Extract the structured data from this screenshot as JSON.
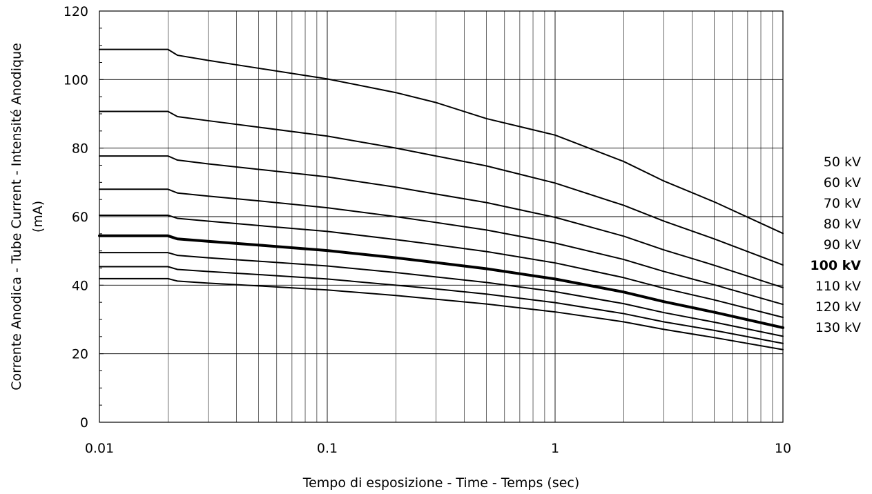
{
  "chart_data": {
    "type": "line",
    "title": "",
    "xlabel": "Tempo di esposizione - Time - Temps  (sec)",
    "ylabel_lines": [
      "Corrente Anodica - Tube Current - Intensité Anodique",
      "(mA)"
    ],
    "x_scale": "log",
    "xlim": [
      0.01,
      10
    ],
    "ylim": [
      0,
      120
    ],
    "x_ticks": [
      0.01,
      0.1,
      1,
      10
    ],
    "x_tick_labels": [
      "0.01",
      "0.1",
      "1",
      "10"
    ],
    "y_ticks": [
      0,
      20,
      40,
      60,
      80,
      100,
      120
    ],
    "y_tick_labels": [
      "0",
      "20",
      "40",
      "60",
      "80",
      "100",
      "120"
    ],
    "grid": true,
    "legend_position": "right",
    "series": [
      {
        "name": "50 kV",
        "bold": false,
        "x": [
          0.01,
          0.02,
          0.022,
          0.03,
          0.05,
          0.1,
          0.2,
          0.3,
          0.5,
          1,
          2,
          3,
          5,
          10
        ],
        "y": [
          108.8,
          108.8,
          107.1,
          105.6,
          103.3,
          100.2,
          96.2,
          93.3,
          88.6,
          83.8,
          76.1,
          70.4,
          64.3,
          55.1
        ]
      },
      {
        "name": "60 kV",
        "bold": false,
        "x": [
          0.01,
          0.02,
          0.022,
          0.03,
          0.05,
          0.1,
          0.2,
          0.3,
          0.5,
          1,
          2,
          3,
          5,
          10
        ],
        "y": [
          90.7,
          90.7,
          89.2,
          88.0,
          86.1,
          83.5,
          80.0,
          77.7,
          74.8,
          69.8,
          63.3,
          58.7,
          53.5,
          45.9
        ]
      },
      {
        "name": "70 kV",
        "bold": false,
        "x": [
          0.01,
          0.02,
          0.022,
          0.03,
          0.05,
          0.1,
          0.2,
          0.3,
          0.5,
          1,
          2,
          3,
          5,
          10
        ],
        "y": [
          77.7,
          77.7,
          76.5,
          75.4,
          73.8,
          71.6,
          68.6,
          66.6,
          64.1,
          59.8,
          54.3,
          50.3,
          45.8,
          39.3
        ]
      },
      {
        "name": "80 kV",
        "bold": false,
        "x": [
          0.01,
          0.02,
          0.022,
          0.03,
          0.05,
          0.1,
          0.2,
          0.3,
          0.5,
          1,
          2,
          3,
          5,
          10
        ],
        "y": [
          68.0,
          68.0,
          66.9,
          66.0,
          64.6,
          62.6,
          60.0,
          58.3,
          56.1,
          52.3,
          47.5,
          44.0,
          40.1,
          34.4
        ]
      },
      {
        "name": "90 kV",
        "bold": false,
        "x": [
          0.01,
          0.02,
          0.022,
          0.03,
          0.05,
          0.1,
          0.2,
          0.3,
          0.5,
          1,
          2,
          3,
          5,
          10
        ],
        "y": [
          60.4,
          60.4,
          59.5,
          58.7,
          57.4,
          55.7,
          53.3,
          51.8,
          49.8,
          46.5,
          42.2,
          39.1,
          35.7,
          30.6
        ]
      },
      {
        "name": "100 kV",
        "bold": true,
        "x": [
          0.01,
          0.02,
          0.022,
          0.03,
          0.05,
          0.1,
          0.2,
          0.3,
          0.5,
          1,
          2,
          3,
          5,
          10
        ],
        "y": [
          54.4,
          54.4,
          53.5,
          52.8,
          51.7,
          50.1,
          48.0,
          46.6,
          44.8,
          41.8,
          38.0,
          35.2,
          32.1,
          27.6
        ]
      },
      {
        "name": "110 kV",
        "bold": false,
        "x": [
          0.01,
          0.02,
          0.022,
          0.03,
          0.05,
          0.1,
          0.2,
          0.3,
          0.5,
          1,
          2,
          3,
          5,
          10
        ],
        "y": [
          49.5,
          49.5,
          48.7,
          48.0,
          47.0,
          45.6,
          43.7,
          42.4,
          40.8,
          38.1,
          34.6,
          32.0,
          29.2,
          25.1
        ]
      },
      {
        "name": "120 kV",
        "bold": false,
        "x": [
          0.01,
          0.02,
          0.022,
          0.03,
          0.05,
          0.1,
          0.2,
          0.3,
          0.5,
          1,
          2,
          3,
          5,
          10
        ],
        "y": [
          45.4,
          45.4,
          44.6,
          44.0,
          43.1,
          41.8,
          40.0,
          38.9,
          37.4,
          34.9,
          31.7,
          29.3,
          26.8,
          23.0
        ]
      },
      {
        "name": "130 kV",
        "bold": false,
        "x": [
          0.01,
          0.02,
          0.022,
          0.03,
          0.05,
          0.1,
          0.2,
          0.3,
          0.5,
          1,
          2,
          3,
          5,
          10
        ],
        "y": [
          41.9,
          41.9,
          41.2,
          40.6,
          39.8,
          38.6,
          37.0,
          35.9,
          34.5,
          32.2,
          29.3,
          27.1,
          24.7,
          21.2
        ]
      }
    ]
  }
}
